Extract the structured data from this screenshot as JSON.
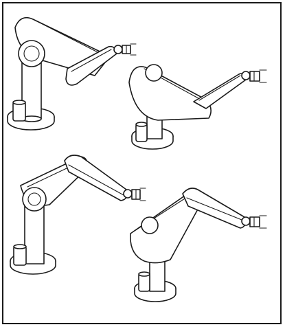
{
  "figure": {
    "kind": "line-drawing",
    "subject": "articulated-robot-arm",
    "panel_count": 4,
    "colors": {
      "line": "#1a1a1a",
      "background": "#ffffff"
    }
  }
}
